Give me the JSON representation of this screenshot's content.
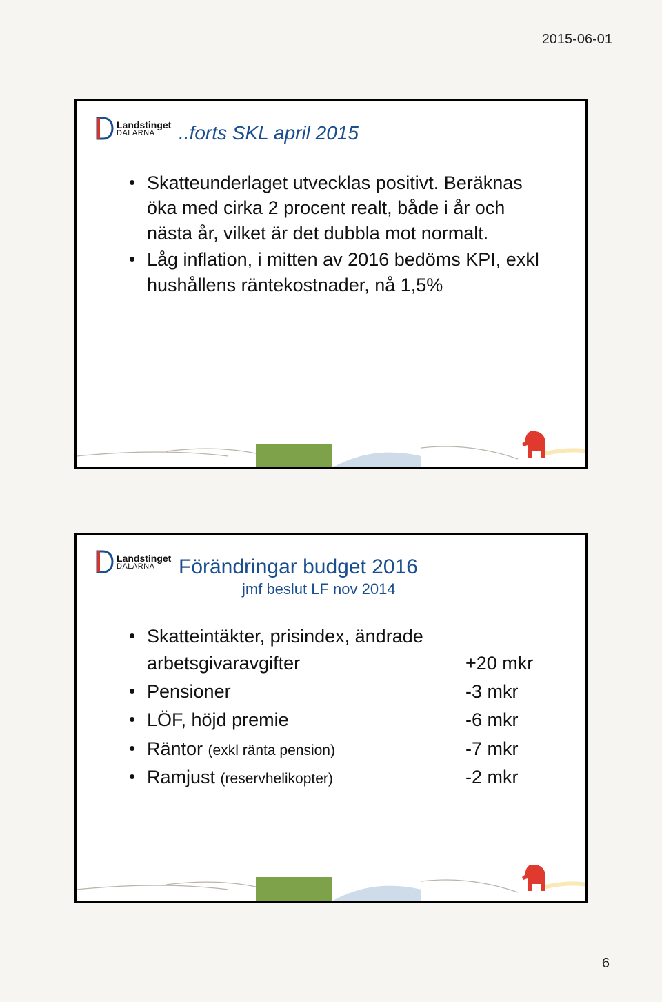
{
  "date": "2015-06-01",
  "pagenum": "6",
  "logo": {
    "line1": "Landstinget",
    "line2": "DALARNA"
  },
  "colors": {
    "title": "#1a4e8e",
    "horse": "#e03a2f",
    "logo_blue": "#1a4e8e",
    "logo_red": "#d7342c",
    "deco_green": "#7ea24a",
    "deco_blue": "#3b6fa3",
    "deco_yellow": "#f3d46a",
    "deco_red": "#e03a2f",
    "deco_line": "#b9b4aa"
  },
  "slide1": {
    "title_prefix": "..forts",
    "title_rest": "  SKL april 2015",
    "bullets": [
      "Skatteunderlaget utvecklas positivt. Beräknas öka med cirka 2 procent realt, både i år och nästa år, vilket är det dubbla mot normalt.",
      "Låg inflation, i mitten av 2016 bedöms KPI, exkl hushållens räntekostnader, nå 1,5%"
    ]
  },
  "slide2": {
    "title": "Förändringar budget 2016",
    "subtitle": "jmf beslut LF nov 2014",
    "items": [
      {
        "label": "Skatteintäkter, prisindex, ändrade arbetsgivaravgifter",
        "value": "+20 mkr",
        "wrap": true
      },
      {
        "label": "Pensioner",
        "value": "-3 mkr"
      },
      {
        "label": "LÖF, höjd premie",
        "value": "-6 mkr"
      },
      {
        "label_html": "Räntor <span class=\"small\">(exkl ränta pension)</span>",
        "value": "-7 mkr"
      },
      {
        "label_html": "Ramjust <span class=\"small\">(reservhelikopter)</span>",
        "value": "-2 mkr"
      }
    ]
  }
}
